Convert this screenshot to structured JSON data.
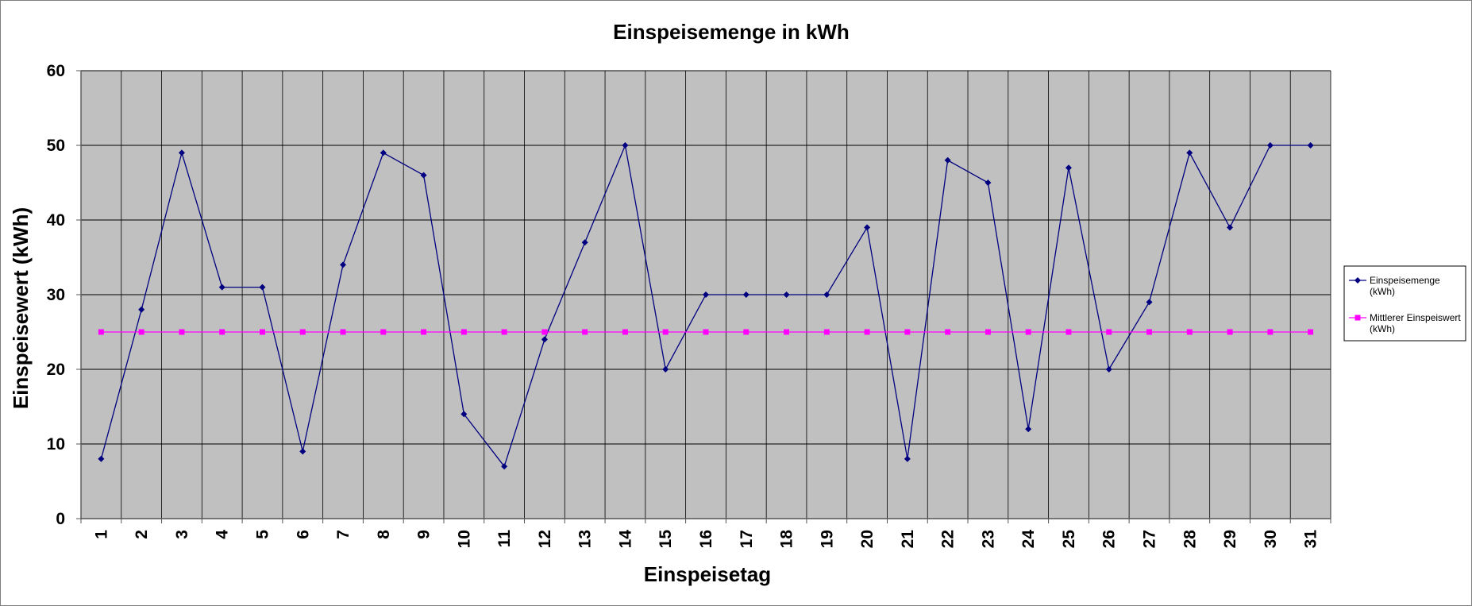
{
  "chart_data": {
    "type": "line",
    "title": "Einspeisemenge in kWh",
    "xlabel": "Einspeisetag",
    "ylabel": "Einspeisewert  (kWh)",
    "ylim": [
      0,
      60
    ],
    "yticks": [
      "0",
      "10",
      "20",
      "30",
      "40",
      "50",
      "60"
    ],
    "categories": [
      "1",
      "2",
      "3",
      "4",
      "5",
      "6",
      "7",
      "8",
      "9",
      "10",
      "11",
      "12",
      "13",
      "14",
      "15",
      "16",
      "17",
      "18",
      "19",
      "20",
      "21",
      "22",
      "23",
      "24",
      "25",
      "26",
      "27",
      "28",
      "29",
      "30",
      "31"
    ],
    "grid": true,
    "legend_position": "right",
    "plot_background": "#c0c0c0",
    "series": [
      {
        "name_lines": [
          "Einspeisemenge",
          "(kWh)"
        ],
        "color": "#000080",
        "marker": "diamond",
        "values": [
          8,
          28,
          49,
          31,
          31,
          9,
          34,
          49,
          46,
          14,
          7,
          24,
          37,
          50,
          20,
          30,
          30,
          30,
          30,
          39,
          8,
          48,
          45,
          12,
          47,
          20,
          29,
          49,
          39,
          50,
          50
        ]
      },
      {
        "name_lines": [
          "Mittlerer Einspeiswert",
          "(kWh)"
        ],
        "color": "#ff00ff",
        "marker": "square",
        "values": [
          25,
          25,
          25,
          25,
          25,
          25,
          25,
          25,
          25,
          25,
          25,
          25,
          25,
          25,
          25,
          25,
          25,
          25,
          25,
          25,
          25,
          25,
          25,
          25,
          25,
          25,
          25,
          25,
          25,
          25,
          25
        ]
      }
    ]
  }
}
